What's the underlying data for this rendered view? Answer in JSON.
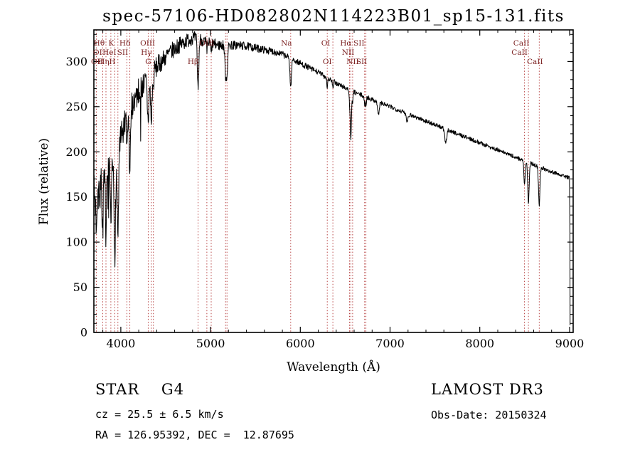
{
  "footer": {
    "object_type": "STAR    G4",
    "survey": "LAMOST DR3",
    "cz": "cz = 25.5 ± 6.5 km/s",
    "obs_date": "Obs-Date: 20150324",
    "ra_dec": "RA = 126.95392, DEC =  12.87695"
  },
  "chart_data": {
    "type": "line",
    "title": "spec-57106-HD082802N114223B01_sp15-131.fits",
    "xlabel": "Wavelength (Å)",
    "ylabel": "Flux (relative)",
    "xlim": [
      3700,
      9040
    ],
    "ylim": [
      0,
      335
    ],
    "grid": false,
    "x_major_ticks": [
      4000,
      5000,
      6000,
      7000,
      8000,
      9000
    ],
    "x_minor_step": 200,
    "y_major_ticks": [
      0,
      50,
      100,
      150,
      200,
      250,
      300
    ],
    "y_minor_step": 10,
    "axis_color": "#000000",
    "spectrum_color": "#000000",
    "marker_color": "#b03030",
    "label_color": "#7a1f1f",
    "continuum": [
      [
        3700,
        148
      ],
      [
        3750,
        158
      ],
      [
        3800,
        165
      ],
      [
        3850,
        172
      ],
      [
        3900,
        180
      ],
      [
        3950,
        188
      ],
      [
        4000,
        212
      ],
      [
        4050,
        232
      ],
      [
        4100,
        246
      ],
      [
        4150,
        258
      ],
      [
        4200,
        267
      ],
      [
        4250,
        274
      ],
      [
        4300,
        281
      ],
      [
        4350,
        288
      ],
      [
        4400,
        294
      ],
      [
        4450,
        300
      ],
      [
        4500,
        305
      ],
      [
        4550,
        310
      ],
      [
        4600,
        314
      ],
      [
        4650,
        318
      ],
      [
        4700,
        321
      ],
      [
        4750,
        324
      ],
      [
        4800,
        326
      ],
      [
        4850,
        326
      ],
      [
        4900,
        324
      ],
      [
        4950,
        321
      ],
      [
        5000,
        320
      ],
      [
        5100,
        318
      ],
      [
        5200,
        318
      ],
      [
        5300,
        318
      ],
      [
        5400,
        317
      ],
      [
        5500,
        315
      ],
      [
        5600,
        313
      ],
      [
        5700,
        311
      ],
      [
        5800,
        308
      ],
      [
        5900,
        303
      ],
      [
        6000,
        298
      ],
      [
        6100,
        293
      ],
      [
        6200,
        288
      ],
      [
        6300,
        282
      ],
      [
        6400,
        276
      ],
      [
        6500,
        271
      ],
      [
        6600,
        266
      ],
      [
        6700,
        262
      ],
      [
        6800,
        258
      ],
      [
        6900,
        254
      ],
      [
        7000,
        250
      ],
      [
        7100,
        246
      ],
      [
        7200,
        242
      ],
      [
        7300,
        238
      ],
      [
        7400,
        234
      ],
      [
        7500,
        230
      ],
      [
        7600,
        226
      ],
      [
        7700,
        222
      ],
      [
        7800,
        218
      ],
      [
        7900,
        214
      ],
      [
        8000,
        210
      ],
      [
        8100,
        206
      ],
      [
        8200,
        202
      ],
      [
        8300,
        198
      ],
      [
        8400,
        194
      ],
      [
        8500,
        190
      ],
      [
        8600,
        186
      ],
      [
        8700,
        182
      ],
      [
        8800,
        178
      ],
      [
        8900,
        175
      ],
      [
        9000,
        171
      ]
    ],
    "absorption_lines": [
      [
        3727,
        30,
        6
      ],
      [
        3798,
        45,
        7
      ],
      [
        3835,
        55,
        7
      ],
      [
        3889,
        60,
        7
      ],
      [
        3933,
        95,
        8
      ],
      [
        3968,
        85,
        8
      ],
      [
        4068,
        35,
        6
      ],
      [
        4101,
        65,
        8
      ],
      [
        4305,
        45,
        10
      ],
      [
        4340,
        55,
        8
      ],
      [
        4363,
        20,
        5
      ],
      [
        4861,
        55,
        8
      ],
      [
        4959,
        10,
        5
      ],
      [
        5007,
        12,
        5
      ],
      [
        5167,
        30,
        8
      ],
      [
        5183,
        30,
        8
      ],
      [
        5893,
        32,
        8
      ],
      [
        6300,
        10,
        5
      ],
      [
        6363,
        8,
        5
      ],
      [
        6548,
        10,
        5
      ],
      [
        6563,
        55,
        7
      ],
      [
        6583,
        10,
        5
      ],
      [
        6717,
        10,
        5
      ],
      [
        6731,
        10,
        5
      ],
      [
        6870,
        14,
        9
      ],
      [
        7190,
        8,
        10
      ],
      [
        7620,
        16,
        11
      ],
      [
        8498,
        28,
        7
      ],
      [
        8542,
        45,
        8
      ],
      [
        8662,
        42,
        8
      ]
    ],
    "noise": {
      "seed": 7,
      "base": 2.2,
      "blue_amp": 24,
      "decay": 750,
      "spike_prob": 0.05,
      "spike_scale": 2.2,
      "spike_max_wl": 4250
    },
    "edges": {
      "start_wl": 3700,
      "start_flux": 28,
      "end_wl": 9006,
      "end_flux": 8
    },
    "line_markers": [
      3727,
      3798,
      3835,
      3889,
      3933,
      3968,
      4068,
      4101,
      4305,
      4340,
      4363,
      4861,
      4959,
      5007,
      5167,
      5183,
      5893,
      6300,
      6363,
      6548,
      6563,
      6583,
      6717,
      6731,
      8498,
      8542,
      8662
    ],
    "line_labels": [
      {
        "text": "Hθ",
        "wl": 3798,
        "row": 1,
        "dx": -5
      },
      {
        "text": "K",
        "wl": 3933,
        "row": 1,
        "dx": -5
      },
      {
        "text": "Hδ",
        "wl": 4101,
        "row": 1,
        "dx": -7
      },
      {
        "text": "OIII",
        "wl": 4363,
        "row": 1,
        "dx": -8
      },
      {
        "text": "OIII",
        "wl": 4959,
        "row": 1,
        "dx": 0
      },
      {
        "text": "Na",
        "wl": 5893,
        "row": 1,
        "dx": -6
      },
      {
        "text": "OI",
        "wl": 6363,
        "row": 1,
        "dx": -10
      },
      {
        "text": "Hα",
        "wl": 6563,
        "row": 1,
        "dx": -7
      },
      {
        "text": "SII",
        "wl": 6717,
        "row": 1,
        "dx": -8
      },
      {
        "text": "CaII",
        "wl": 8542,
        "row": 1,
        "dx": -10
      },
      {
        "text": "OI",
        "wl": 3727,
        "row": 2,
        "dx": 2
      },
      {
        "text": "HeI",
        "wl": 3889,
        "row": 2,
        "dx": -2
      },
      {
        "text": "SII",
        "wl": 4068,
        "row": 2,
        "dx": -6
      },
      {
        "text": "Hγ",
        "wl": 4340,
        "row": 2,
        "dx": -7
      },
      {
        "text": "NII",
        "wl": 6548,
        "row": 2,
        "dx": -2
      },
      {
        "text": "CaII",
        "wl": 8498,
        "row": 2,
        "dx": -7
      },
      {
        "text": "OII",
        "wl": 3727,
        "row": 3,
        "dx": 1
      },
      {
        "text": "Hη",
        "wl": 3835,
        "row": 3,
        "dx": -3
      },
      {
        "text": "H",
        "wl": 3968,
        "row": 3,
        "dx": -8
      },
      {
        "text": "G",
        "wl": 4305,
        "row": 3,
        "dx": 0
      },
      {
        "text": "Hβ",
        "wl": 4861,
        "row": 3,
        "dx": -7
      },
      {
        "text": "OI",
        "wl": 6300,
        "row": 3,
        "dx": 0
      },
      {
        "text": "NII",
        "wl": 6583,
        "row": 3,
        "dx": 0
      },
      {
        "text": "SII",
        "wl": 6731,
        "row": 3,
        "dx": -6
      },
      {
        "text": "CaII",
        "wl": 8662,
        "row": 3,
        "dx": -6
      }
    ]
  }
}
